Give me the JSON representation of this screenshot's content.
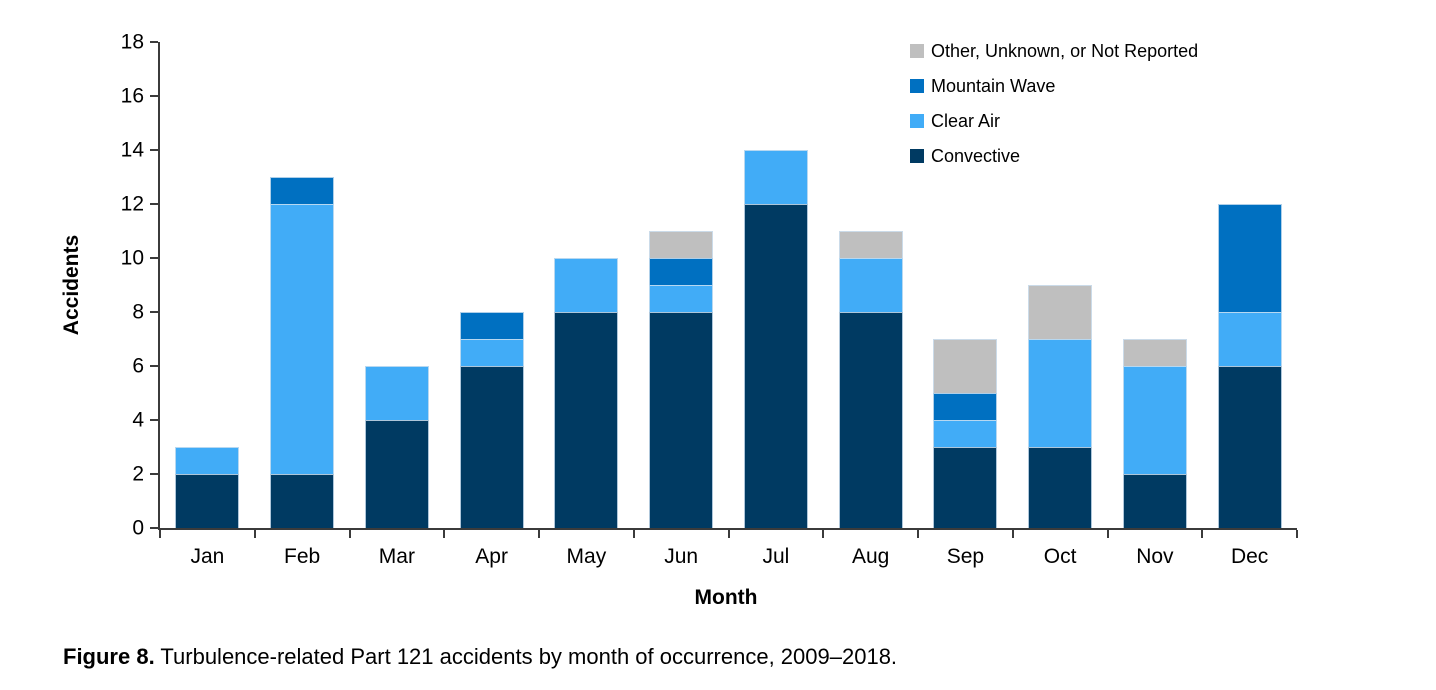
{
  "caption": {
    "label": "Figure 8.",
    "text": " Turbulence-related Part 121 accidents by month of occurrence, 2009–2018."
  },
  "chart_data": {
    "type": "bar",
    "stacked": true,
    "title": "",
    "xlabel": "Month",
    "ylabel": "Accidents",
    "ylim": [
      0,
      18
    ],
    "ytick_step": 2,
    "grid": false,
    "legend_position": "top-right",
    "categories": [
      "Jan",
      "Feb",
      "Mar",
      "Apr",
      "May",
      "Jun",
      "Jul",
      "Aug",
      "Sep",
      "Oct",
      "Nov",
      "Dec"
    ],
    "series": [
      {
        "name": "Convective",
        "color": "#003A62",
        "values": [
          2,
          2,
          4,
          6,
          8,
          8,
          12,
          8,
          3,
          3,
          2,
          6
        ]
      },
      {
        "name": "Clear Air",
        "color": "#41ACF7",
        "values": [
          1,
          10,
          2,
          1,
          2,
          1,
          2,
          2,
          1,
          4,
          4,
          2
        ]
      },
      {
        "name": "Mountain Wave",
        "color": "#0070C1",
        "values": [
          0,
          1,
          0,
          1,
          0,
          1,
          0,
          0,
          1,
          0,
          0,
          4
        ]
      },
      {
        "name": "Other, Unknown, or Not Reported",
        "color": "#BFBFBF",
        "values": [
          0,
          0,
          0,
          0,
          0,
          1,
          0,
          1,
          2,
          2,
          1,
          0
        ]
      }
    ],
    "totals": [
      3,
      13,
      6,
      8,
      10,
      11,
      14,
      11,
      7,
      9,
      7,
      12
    ],
    "legend_top_to_bottom": [
      "Other, Unknown, or Not Reported",
      "Mountain Wave",
      "Clear Air",
      "Convective"
    ],
    "axis_color": "#3b3b3b"
  }
}
